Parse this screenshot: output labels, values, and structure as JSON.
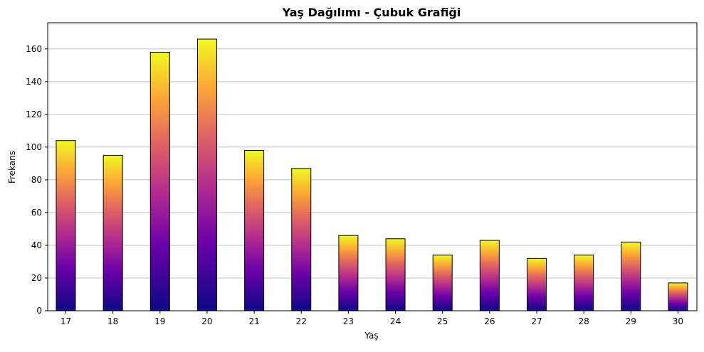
{
  "chart_data": {
    "type": "bar",
    "title": "Yaş Dağılımı - Çubuk Grafiği",
    "xlabel": "Yaş",
    "ylabel": "Frekans",
    "categories": [
      "17",
      "18",
      "19",
      "20",
      "21",
      "22",
      "23",
      "24",
      "25",
      "26",
      "27",
      "28",
      "29",
      "30"
    ],
    "values": [
      104,
      95,
      158,
      166,
      98,
      87,
      46,
      44,
      34,
      43,
      32,
      34,
      42,
      17
    ],
    "ylim": [
      0,
      176
    ],
    "yticks": [
      0,
      20,
      40,
      60,
      80,
      100,
      120,
      140,
      160
    ],
    "grid": "horizontal",
    "legend": "none",
    "colors": {
      "gradient_bottom": "#0d0887",
      "gradient_mid1": "#6a00a8",
      "gradient_mid2": "#b12a90",
      "gradient_mid3": "#e16462",
      "gradient_mid4": "#fca636",
      "gradient_top": "#f0f921",
      "bar_edge": "#000000",
      "grid": "#c0c0c0"
    }
  }
}
